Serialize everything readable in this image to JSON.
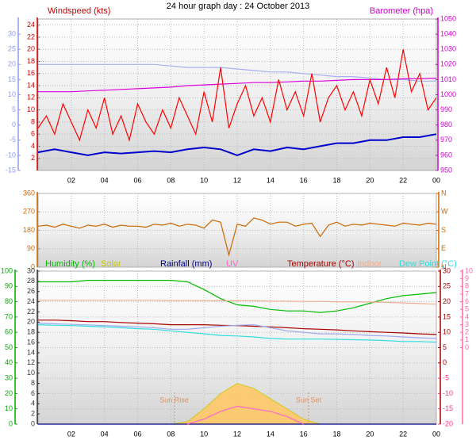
{
  "chart_data": [
    {
      "type": "line",
      "title": "24 hour graph day : 24 October 2013",
      "ylabel": "Windspeed (kts)",
      "y2label": "Barometer (hpa)",
      "xlim": [
        0,
        24
      ],
      "xticks": [
        {
          "value": 2,
          "label": "02"
        },
        {
          "value": 4,
          "label": "04"
        },
        {
          "value": 6,
          "label": "06"
        },
        {
          "value": 8,
          "label": "08"
        },
        10,
        12,
        14,
        16,
        18,
        20,
        22,
        {
          "value": 24,
          "label": "00"
        }
      ],
      "ylim": [
        0,
        25
      ],
      "yticks": [
        2,
        4,
        6,
        8,
        10,
        12,
        14,
        16,
        18,
        20,
        22,
        24
      ],
      "ycolor": "#cc0000",
      "y2lim": [
        950,
        1050
      ],
      "y2ticks": [
        950,
        960,
        970,
        980,
        990,
        1000,
        1010,
        1020,
        1030,
        1040,
        1050
      ],
      "y2color": "#cc00cc",
      "y3lim": [
        -15,
        35
      ],
      "y3ticks": [
        -15,
        -10,
        -5,
        0,
        5,
        10,
        15,
        20,
        25,
        30
      ],
      "y3color": "#8c9cf0",
      "grid": true,
      "series": [
        {
          "color": "#a8b0f0",
          "axis": "y3",
          "x": [
            0,
            1,
            2,
            3,
            4,
            5,
            6,
            7,
            8,
            9,
            10,
            11,
            12,
            13,
            14,
            15,
            16,
            17,
            18,
            19,
            20,
            21,
            22,
            23,
            24
          ],
          "values": [
            20,
            20,
            20,
            20,
            20,
            20,
            20,
            20,
            19.5,
            19,
            19,
            19,
            18.5,
            18,
            17.5,
            17.5,
            17,
            16.5,
            16,
            16,
            15.5,
            15,
            15,
            14.5,
            14.5
          ]
        },
        {
          "color": "#dd00dd",
          "axis": "y2",
          "x": [
            0,
            1,
            2,
            3,
            4,
            5,
            6,
            7,
            8,
            9,
            10,
            11,
            12,
            13,
            14,
            15,
            16,
            17,
            18,
            19,
            20,
            21,
            22,
            23,
            24
          ],
          "values": [
            1002,
            1002,
            1002,
            1002.5,
            1003,
            1003.5,
            1004,
            1004.5,
            1005,
            1006,
            1006.5,
            1007,
            1007.5,
            1008,
            1008,
            1008.5,
            1009,
            1009,
            1009.5,
            1010,
            1010,
            1010,
            1010.5,
            1010.5,
            1011
          ]
        },
        {
          "color": "#ff0000",
          "x": [
            0,
            0.5,
            1,
            1.5,
            2,
            2.5,
            3,
            3.5,
            4,
            4.5,
            5,
            5.5,
            6,
            6.5,
            7,
            7.5,
            8,
            8.5,
            9,
            9.5,
            10,
            10.5,
            11,
            11.5,
            12,
            12.5,
            13,
            13.5,
            14,
            14.5,
            15,
            15.5,
            16,
            16.5,
            17,
            17.5,
            18,
            18.5,
            19,
            19.5,
            20,
            20.5,
            21,
            21.5,
            22,
            22.5,
            23,
            23.5,
            24
          ],
          "values": [
            7,
            9,
            6,
            11,
            8,
            5,
            10,
            7,
            12,
            6,
            9,
            5,
            11,
            8,
            6,
            10,
            7,
            12,
            9,
            6,
            13,
            8,
            17,
            7,
            11,
            14,
            9,
            12,
            8,
            15,
            10,
            13,
            9,
            16,
            8,
            12,
            14,
            10,
            13,
            9,
            15,
            11,
            17,
            12,
            20,
            13,
            16,
            10,
            12
          ]
        },
        {
          "color": "#0000cc",
          "x": [
            0,
            1,
            2,
            3,
            4,
            5,
            6,
            7,
            8,
            9,
            10,
            11,
            12,
            13,
            14,
            15,
            16,
            17,
            18,
            19,
            20,
            21,
            22,
            23,
            24
          ],
          "values": [
            3,
            3.5,
            3,
            2.5,
            3,
            2.8,
            3,
            3.2,
            3,
            3.5,
            3.8,
            3.5,
            2.5,
            3.5,
            3.2,
            3.8,
            3.5,
            4,
            4.5,
            4.5,
            5,
            5,
            5.5,
            5.5,
            6
          ]
        }
      ]
    },
    {
      "type": "line",
      "xlim": [
        0,
        24
      ],
      "xticks": [
        {
          "value": 2,
          "label": "02"
        },
        {
          "value": 4,
          "label": "04"
        },
        {
          "value": 6,
          "label": "06"
        },
        {
          "value": 8,
          "label": "08"
        },
        10,
        12,
        14,
        16,
        18,
        20,
        22,
        {
          "value": 24,
          "label": "00"
        }
      ],
      "ylim": [
        0,
        360
      ],
      "yticks": [
        0,
        90,
        180,
        270,
        360
      ],
      "ycolor": "#cc6600",
      "y2lim": [
        0,
        360
      ],
      "y2ticks": [
        {
          "value": 0,
          "label": "N"
        },
        {
          "value": 90,
          "label": "E"
        },
        {
          "value": 180,
          "label": "S"
        },
        {
          "value": 270,
          "label": "W"
        },
        {
          "value": 360,
          "label": "N"
        }
      ],
      "y2color": "#cc6600",
      "grid": true,
      "series": [
        {
          "color": "#cc6600",
          "x": [
            0,
            0.5,
            1,
            1.5,
            2,
            2.5,
            3,
            3.5,
            4,
            4.5,
            5,
            5.5,
            6,
            6.5,
            7,
            7.5,
            8,
            8.5,
            9,
            9.5,
            10,
            10.5,
            11,
            11.5,
            12,
            12.5,
            13,
            13.5,
            14,
            14.5,
            15,
            15.5,
            16,
            16.5,
            17,
            17.5,
            18,
            18.5,
            19,
            19.5,
            20,
            20.5,
            21,
            21.5,
            22,
            22.5,
            23,
            23.5,
            24
          ],
          "values": [
            200,
            205,
            195,
            210,
            200,
            190,
            205,
            200,
            210,
            195,
            205,
            200,
            200,
            195,
            210,
            205,
            215,
            200,
            210,
            205,
            190,
            230,
            220,
            60,
            210,
            200,
            240,
            230,
            210,
            220,
            220,
            200,
            210,
            215,
            150,
            205,
            220,
            200,
            210,
            205,
            215,
            210,
            205,
            200,
            215,
            210,
            205,
            215,
            210
          ]
        }
      ]
    },
    {
      "type": "line",
      "xlim": [
        0,
        24
      ],
      "xticks": [
        {
          "value": 2,
          "label": "02"
        },
        {
          "value": 4,
          "label": "04"
        },
        {
          "value": 6,
          "label": "06"
        },
        {
          "value": 8,
          "label": "08"
        },
        10,
        12,
        14,
        16,
        18,
        20,
        22,
        {
          "value": 24,
          "label": "00"
        }
      ],
      "ylim": [
        0,
        100
      ],
      "yticks": [
        0,
        10,
        20,
        30,
        40,
        50,
        60,
        70,
        80,
        90,
        100
      ],
      "ycolor": "#00aa00",
      "y2lim": [
        0,
        30
      ],
      "y2ticks": [
        0,
        2,
        4,
        6,
        8,
        10,
        12,
        14,
        16,
        18,
        20,
        22,
        24,
        26,
        28,
        30
      ],
      "y2color": "#333333",
      "y3lim": [
        -20,
        30
      ],
      "y3ticks": [
        -20,
        -15,
        -10,
        -5,
        0,
        5,
        10,
        15,
        20,
        25,
        30
      ],
      "y3color": "#aa0000",
      "y3negcolor": "#ff3388",
      "y4lim": [
        -10,
        10
      ],
      "y4ticks": [
        0,
        1,
        2,
        3,
        4,
        5,
        6,
        7,
        8,
        9,
        10
      ],
      "y4color": "#ff66aa",
      "grid": true,
      "annotations": [
        {
          "text": "Sun Rise",
          "x": 8.2
        },
        {
          "text": "Sun Set",
          "x": 16.3
        }
      ],
      "series": [
        {
          "name": "Humidity (%)",
          "color": "#00bb00",
          "x": [
            0,
            1,
            2,
            3,
            4,
            5,
            6,
            7,
            8,
            9,
            10,
            11,
            12,
            13,
            14,
            15,
            16,
            17,
            18,
            19,
            20,
            21,
            22,
            23,
            24
          ],
          "values": [
            93,
            93,
            93,
            94,
            94,
            94,
            94,
            94,
            94,
            93,
            88,
            82,
            78,
            77,
            75,
            74,
            74,
            73,
            74,
            76,
            79,
            82,
            84,
            85,
            86
          ]
        },
        {
          "name": "Solar",
          "color": "#c8c800",
          "fill": "#ffc860",
          "style": "area",
          "axis": "y2",
          "x": [
            8,
            9,
            10,
            11,
            12,
            13,
            14,
            15,
            16,
            17
          ],
          "values": [
            0,
            0.5,
            3,
            6,
            8,
            7,
            5,
            3,
            1,
            0
          ]
        },
        {
          "name": "Rainfall (mm)",
          "color": "#000080",
          "axis": "y2",
          "x": [
            0,
            24
          ],
          "values": [
            0,
            0
          ]
        },
        {
          "name": "UV",
          "color": "#ff66cc",
          "axis": "y2",
          "x": [
            9,
            10,
            11,
            12,
            13,
            14,
            15,
            16
          ],
          "values": [
            0,
            1,
            2.5,
            3.5,
            3,
            2.5,
            1.5,
            0
          ]
        },
        {
          "name": "Temperature (°C)",
          "color": "#aa0000",
          "axis": "y3",
          "x": [
            0,
            1,
            2,
            3,
            4,
            5,
            6,
            7,
            8,
            9,
            10,
            11,
            12,
            13,
            14,
            15,
            16,
            17,
            18,
            19,
            20,
            21,
            22,
            23,
            24
          ],
          "values": [
            14,
            14,
            13.8,
            13.5,
            13.5,
            13.2,
            13,
            12.8,
            12.5,
            12.5,
            12.5,
            12.3,
            12.2,
            12,
            11.8,
            11.5,
            11.2,
            11,
            10.8,
            10.5,
            10.2,
            10,
            9.8,
            9.5,
            9.3
          ]
        },
        {
          "name": "Indoor",
          "color": "#f0b090",
          "axis": "y3",
          "x": [
            0,
            1,
            2,
            3,
            4,
            5,
            6,
            7,
            8,
            9,
            10,
            11,
            12,
            13,
            14,
            15,
            16,
            17,
            18,
            19,
            20,
            21,
            22,
            23,
            24
          ],
          "values": [
            20.5,
            20.5,
            20.5,
            20.5,
            20.5,
            20.5,
            20.5,
            20.5,
            20.4,
            20.4,
            20.4,
            20.3,
            20.3,
            20.3,
            20.2,
            20.2,
            20.1,
            20.1,
            20,
            20,
            19.9,
            19.8,
            19.6,
            19.4,
            19.2
          ]
        },
        {
          "name": "Dew Point (°C)",
          "color": "#33dddd",
          "axis": "y3",
          "x": [
            0,
            1,
            2,
            3,
            4,
            5,
            6,
            7,
            8,
            9,
            10,
            11,
            12,
            13,
            14,
            15,
            16,
            17,
            18,
            19,
            20,
            21,
            22,
            23,
            24
          ],
          "values": [
            12.5,
            12.3,
            12.2,
            12,
            11.8,
            11.5,
            11.2,
            11,
            10.5,
            10,
            9.5,
            9,
            8.8,
            8.5,
            8,
            7.8,
            7.8,
            7.8,
            7.7,
            7.6,
            7.5,
            7.3,
            7,
            7,
            6.8
          ]
        },
        {
          "color": "#a0a8f0",
          "axis": "y3",
          "x": [
            0,
            1,
            2,
            3,
            4,
            5,
            6,
            7,
            8,
            9,
            10,
            11,
            12,
            13,
            14,
            15,
            16,
            17,
            18,
            19,
            20,
            21,
            22,
            23,
            24
          ],
          "values": [
            13,
            12.8,
            12.6,
            12.4,
            12.2,
            12,
            11.8,
            11.5,
            11,
            11,
            11.5,
            12,
            12.3,
            12.5,
            11.5,
            10.5,
            10,
            9.5,
            9.5,
            9.3,
            9,
            8.8,
            8.5,
            8.2,
            8
          ]
        }
      ]
    }
  ]
}
